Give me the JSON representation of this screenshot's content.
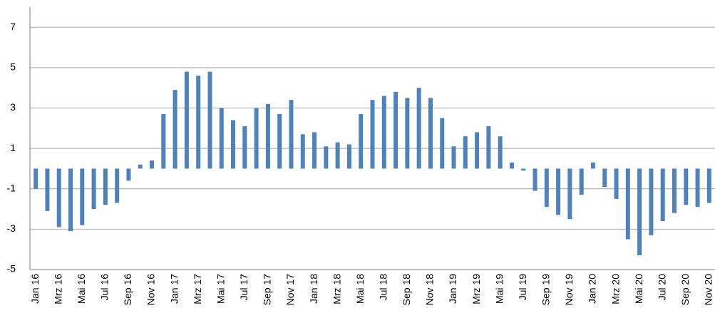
{
  "chart_data": {
    "type": "bar",
    "categories": [
      "Jan 16",
      null,
      "Mrz 16",
      null,
      "Mai 16",
      null,
      "Jul 16",
      null,
      "Sep 16",
      null,
      "Nov 16",
      null,
      "Jan 17",
      null,
      "Mrz 17",
      null,
      "Mai 17",
      null,
      "Jul 17",
      null,
      "Sep 17",
      null,
      "Nov 17",
      null,
      "Jan 18",
      null,
      "Mrz 18",
      null,
      "Mai 18",
      null,
      "Jul 18",
      null,
      "Sep 18",
      null,
      "Nov 18",
      null,
      "Jan 19",
      null,
      "Mrz 19",
      null,
      "Mai 19",
      null,
      "Jul 19",
      null,
      "Sep 19",
      null,
      "Nov 19",
      null,
      "Jan 20",
      null,
      "Mrz 20",
      null,
      "Mai 20",
      null,
      "Jul 20",
      null,
      "Sep 20",
      null,
      "Nov 20"
    ],
    "values": [
      -1.0,
      -2.1,
      -2.9,
      -3.1,
      -2.8,
      -2.0,
      -1.8,
      -1.7,
      -0.6,
      0.2,
      0.4,
      2.7,
      3.9,
      4.8,
      4.6,
      4.8,
      3.0,
      2.4,
      2.1,
      3.0,
      3.2,
      2.7,
      3.4,
      1.7,
      1.8,
      1.1,
      1.3,
      1.2,
      2.7,
      3.4,
      3.6,
      3.8,
      3.5,
      4.0,
      3.5,
      2.5,
      1.1,
      1.6,
      1.8,
      2.1,
      1.6,
      0.3,
      -0.1,
      -1.1,
      -1.9,
      -2.3,
      -2.5,
      -1.3,
      0.3,
      -0.9,
      -1.5,
      -3.5,
      -4.3,
      -3.3,
      -2.6,
      -2.2,
      -1.8,
      -1.9,
      -1.7
    ],
    "color": "#4f81bd",
    "ylim": [
      -5,
      8
    ],
    "yticks": [
      -5,
      -3,
      -1,
      1,
      3,
      5,
      7
    ],
    "grid": true
  }
}
